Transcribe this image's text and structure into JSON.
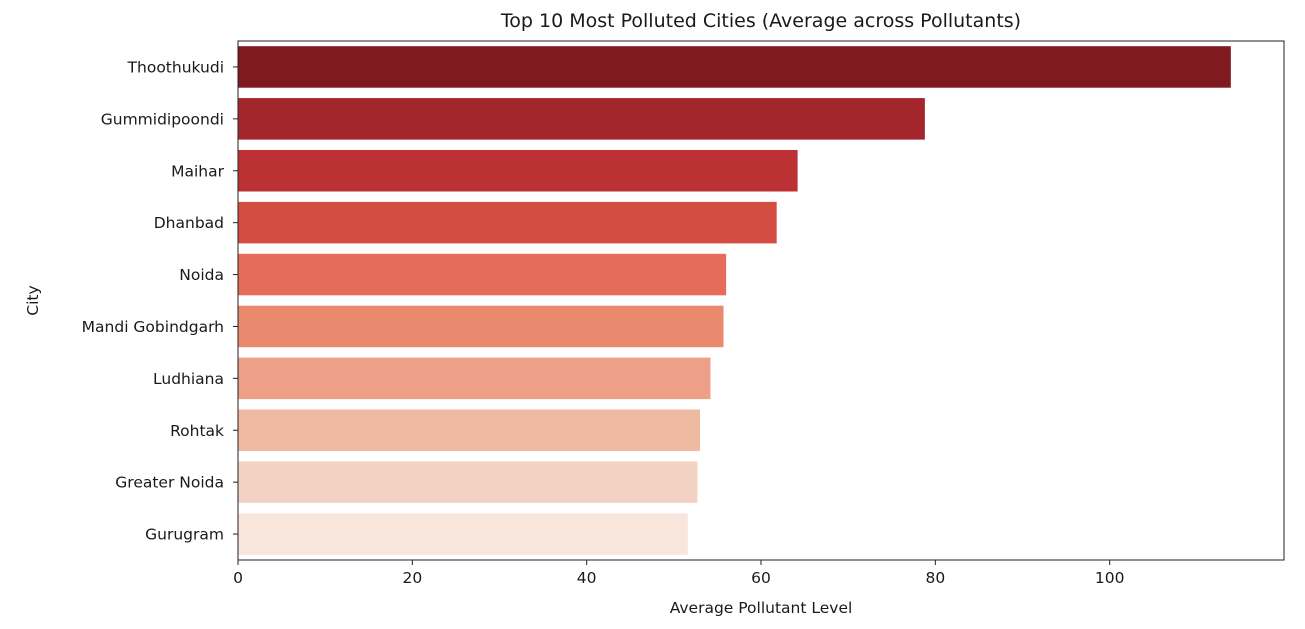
{
  "chart_data": {
    "type": "bar",
    "orientation": "horizontal",
    "title": "Top 10 Most Polluted Cities (Average across Pollutants)",
    "xlabel": "Average Pollutant Level",
    "ylabel": "City",
    "categories": [
      "Thoothukudi",
      "Gummidipoondi",
      "Maihar",
      "Dhanbad",
      "Noida",
      "Mandi Gobindgarh",
      "Ludhiana",
      "Rohtak",
      "Greater Noida",
      "Gurugram"
    ],
    "values": [
      113.9,
      78.8,
      64.2,
      61.8,
      56.0,
      55.7,
      54.2,
      53.0,
      52.7,
      51.6
    ],
    "colors": [
      "#7f1a21",
      "#a3262d",
      "#bc3133",
      "#d44d43",
      "#e46c58",
      "#e98a6f",
      "#eda087",
      "#f0b9a1",
      "#f4d2c3",
      "#f8e5dc"
    ],
    "xlim": [
      0,
      120
    ],
    "xticks": [
      0,
      20,
      40,
      60,
      80,
      100
    ],
    "grid": false,
    "legend": "none"
  }
}
